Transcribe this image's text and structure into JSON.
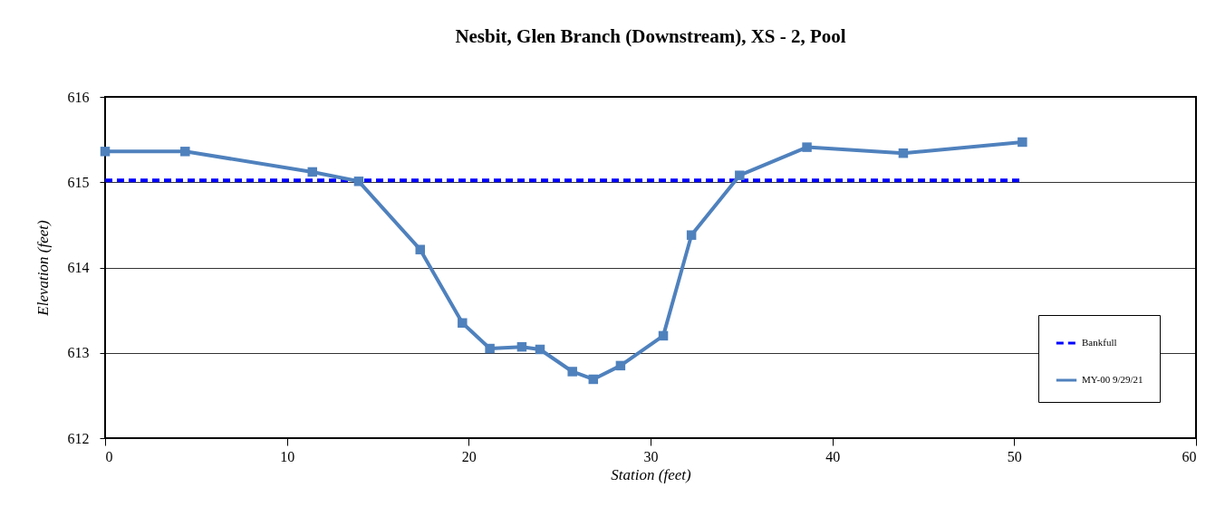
{
  "chart_data": {
    "type": "line",
    "title": "Nesbit, Glen Branch (Downstream), XS - 2, Pool",
    "xlabel": "Station (feet)",
    "ylabel": "Elevation (feet)",
    "xlim": [
      0,
      60
    ],
    "xticks": [
      0,
      10,
      20,
      30,
      40,
      50,
      60
    ],
    "ylim": [
      612,
      616
    ],
    "yticks": [
      612,
      613,
      614,
      615,
      616
    ],
    "grid": "y",
    "legend": "bottom right",
    "series": [
      {
        "name": "Bankfull",
        "color": "#0000ff",
        "line_style": "dashed",
        "marker": "none",
        "x": [
          0,
          50.3
        ],
        "values": [
          615.02,
          615.02
        ]
      },
      {
        "name": "MY-00 9/29/21",
        "color": "#4f81bd",
        "line_style": "solid",
        "marker": "square",
        "x": [
          0,
          4.4,
          11.4,
          13.95,
          17.33,
          19.65,
          21.16,
          22.92,
          23.92,
          25.7,
          26.85,
          28.35,
          30.7,
          32.25,
          34.9,
          38.6,
          43.9,
          50.45
        ],
        "values": [
          615.36,
          615.36,
          615.12,
          615.01,
          614.21,
          613.35,
          613.05,
          613.07,
          613.04,
          612.78,
          612.69,
          612.85,
          613.2,
          614.38,
          615.08,
          615.41,
          615.34,
          615.47
        ]
      }
    ]
  }
}
